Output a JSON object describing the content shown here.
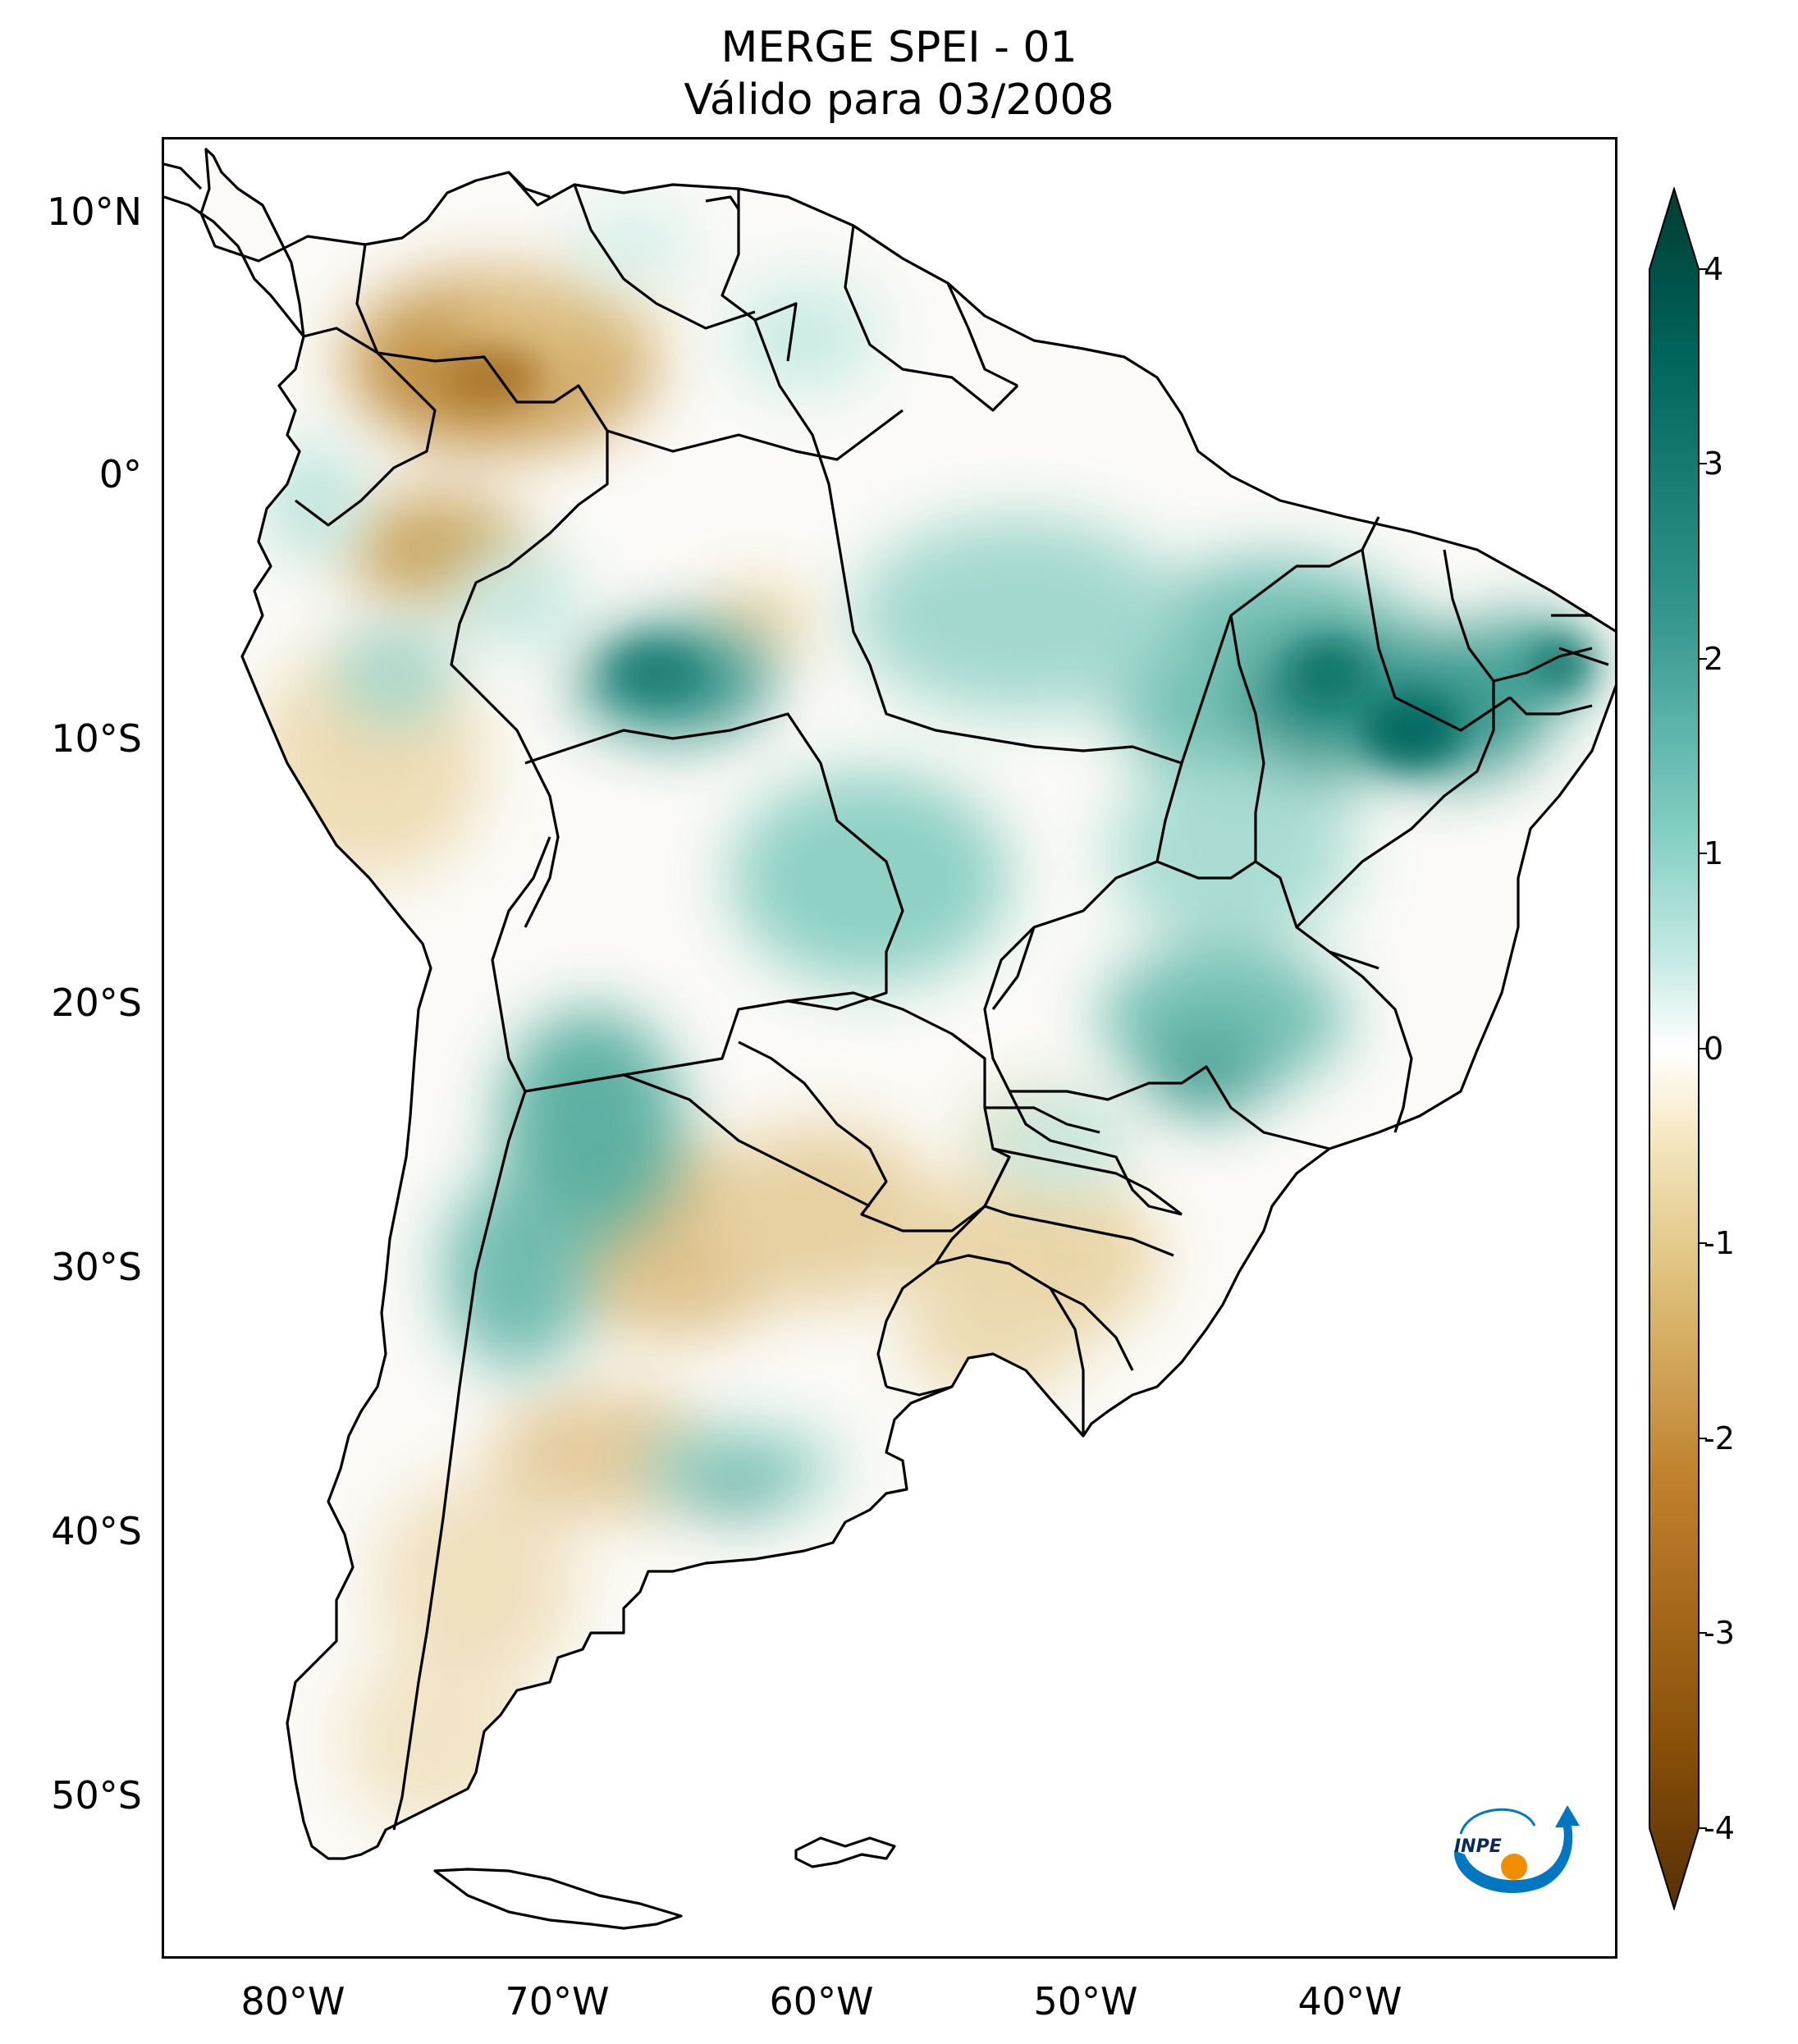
{
  "title": {
    "line1": "MERGE   SPEI - 01",
    "line2": "Válido para 03/2008"
  },
  "map": {
    "projection": "PlateCarree",
    "lon_range": [
      "85°W",
      "30°W"
    ],
    "lat_range": [
      "56°S",
      "13°N"
    ],
    "lat_ticks": [
      "10°N",
      "0°",
      "10°S",
      "20°S",
      "30°S",
      "40°S",
      "50°S"
    ],
    "lon_ticks": [
      "80°W",
      "70°W",
      "60°W",
      "50°W",
      "40°W"
    ],
    "borders": "country and Brazilian state boundaries",
    "wet_regions": [
      "northeast Brazil",
      "central Amazon",
      "northwestern Argentina",
      "Buenos Aires coast"
    ],
    "dry_regions": [
      "Colombia/Venezuela",
      "northern Peru",
      "Uruguay/central Argentina",
      "Patagonia"
    ]
  },
  "colorbar": {
    "ticks": [
      "4",
      "3",
      "2",
      "1",
      "0",
      "-1",
      "-2",
      "-3",
      "-4"
    ],
    "min": -4,
    "max": 4,
    "extend": "both",
    "colormap": "BrBG",
    "colors": [
      "#543005",
      "#8c510a",
      "#bf812d",
      "#dfc27d",
      "#f6e8c3",
      "#ffffff",
      "#c7eae5",
      "#80cdc1",
      "#35978f",
      "#01665e",
      "#003c30"
    ]
  },
  "logo": {
    "text": "INPE",
    "colors": [
      "#0077c0",
      "#f28c00"
    ]
  }
}
